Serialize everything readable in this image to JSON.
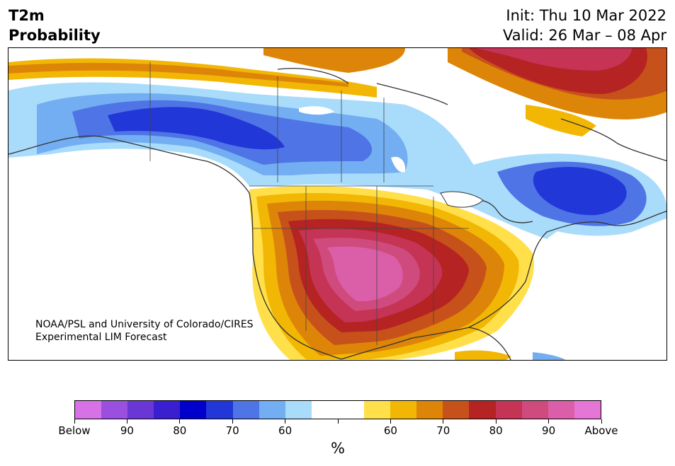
{
  "header": {
    "title_line1": "T2m",
    "title_line2": "Probability",
    "init": "Init: Thu 10 Mar 2022",
    "valid": "Valid: 26 Mar – 08 Apr"
  },
  "credit": {
    "line1": "NOAA/PSL and University of Colorado/CIRES",
    "line2": "Experimental LIM Forecast"
  },
  "colorbar": {
    "units": "%",
    "colors": [
      "#d672e6",
      "#9a4fde",
      "#6b36d6",
      "#3a1fd1",
      "#0000cc",
      "#2237d8",
      "#4f74e6",
      "#73aef2",
      "#a9dcfb",
      "#ffffff",
      "#ffffff",
      "#ffe04a",
      "#f2b705",
      "#dd8508",
      "#c7511a",
      "#b52323",
      "#c53355",
      "#cf4b7d",
      "#da5fa8",
      "#e676d6"
    ],
    "tick_labels": [
      "Below",
      "90",
      "80",
      "70",
      "60",
      "",
      "60",
      "70",
      "80",
      "90",
      "Above"
    ]
  },
  "map": {
    "cold_colors": [
      "#a9dcfb",
      "#73aef2",
      "#4f74e6",
      "#2237d8"
    ],
    "warm_colors": [
      "#ffe04a",
      "#f2b705",
      "#dd8508",
      "#c7511a",
      "#b52323",
      "#c53355",
      "#cf4b7d",
      "#da5fa8"
    ]
  }
}
